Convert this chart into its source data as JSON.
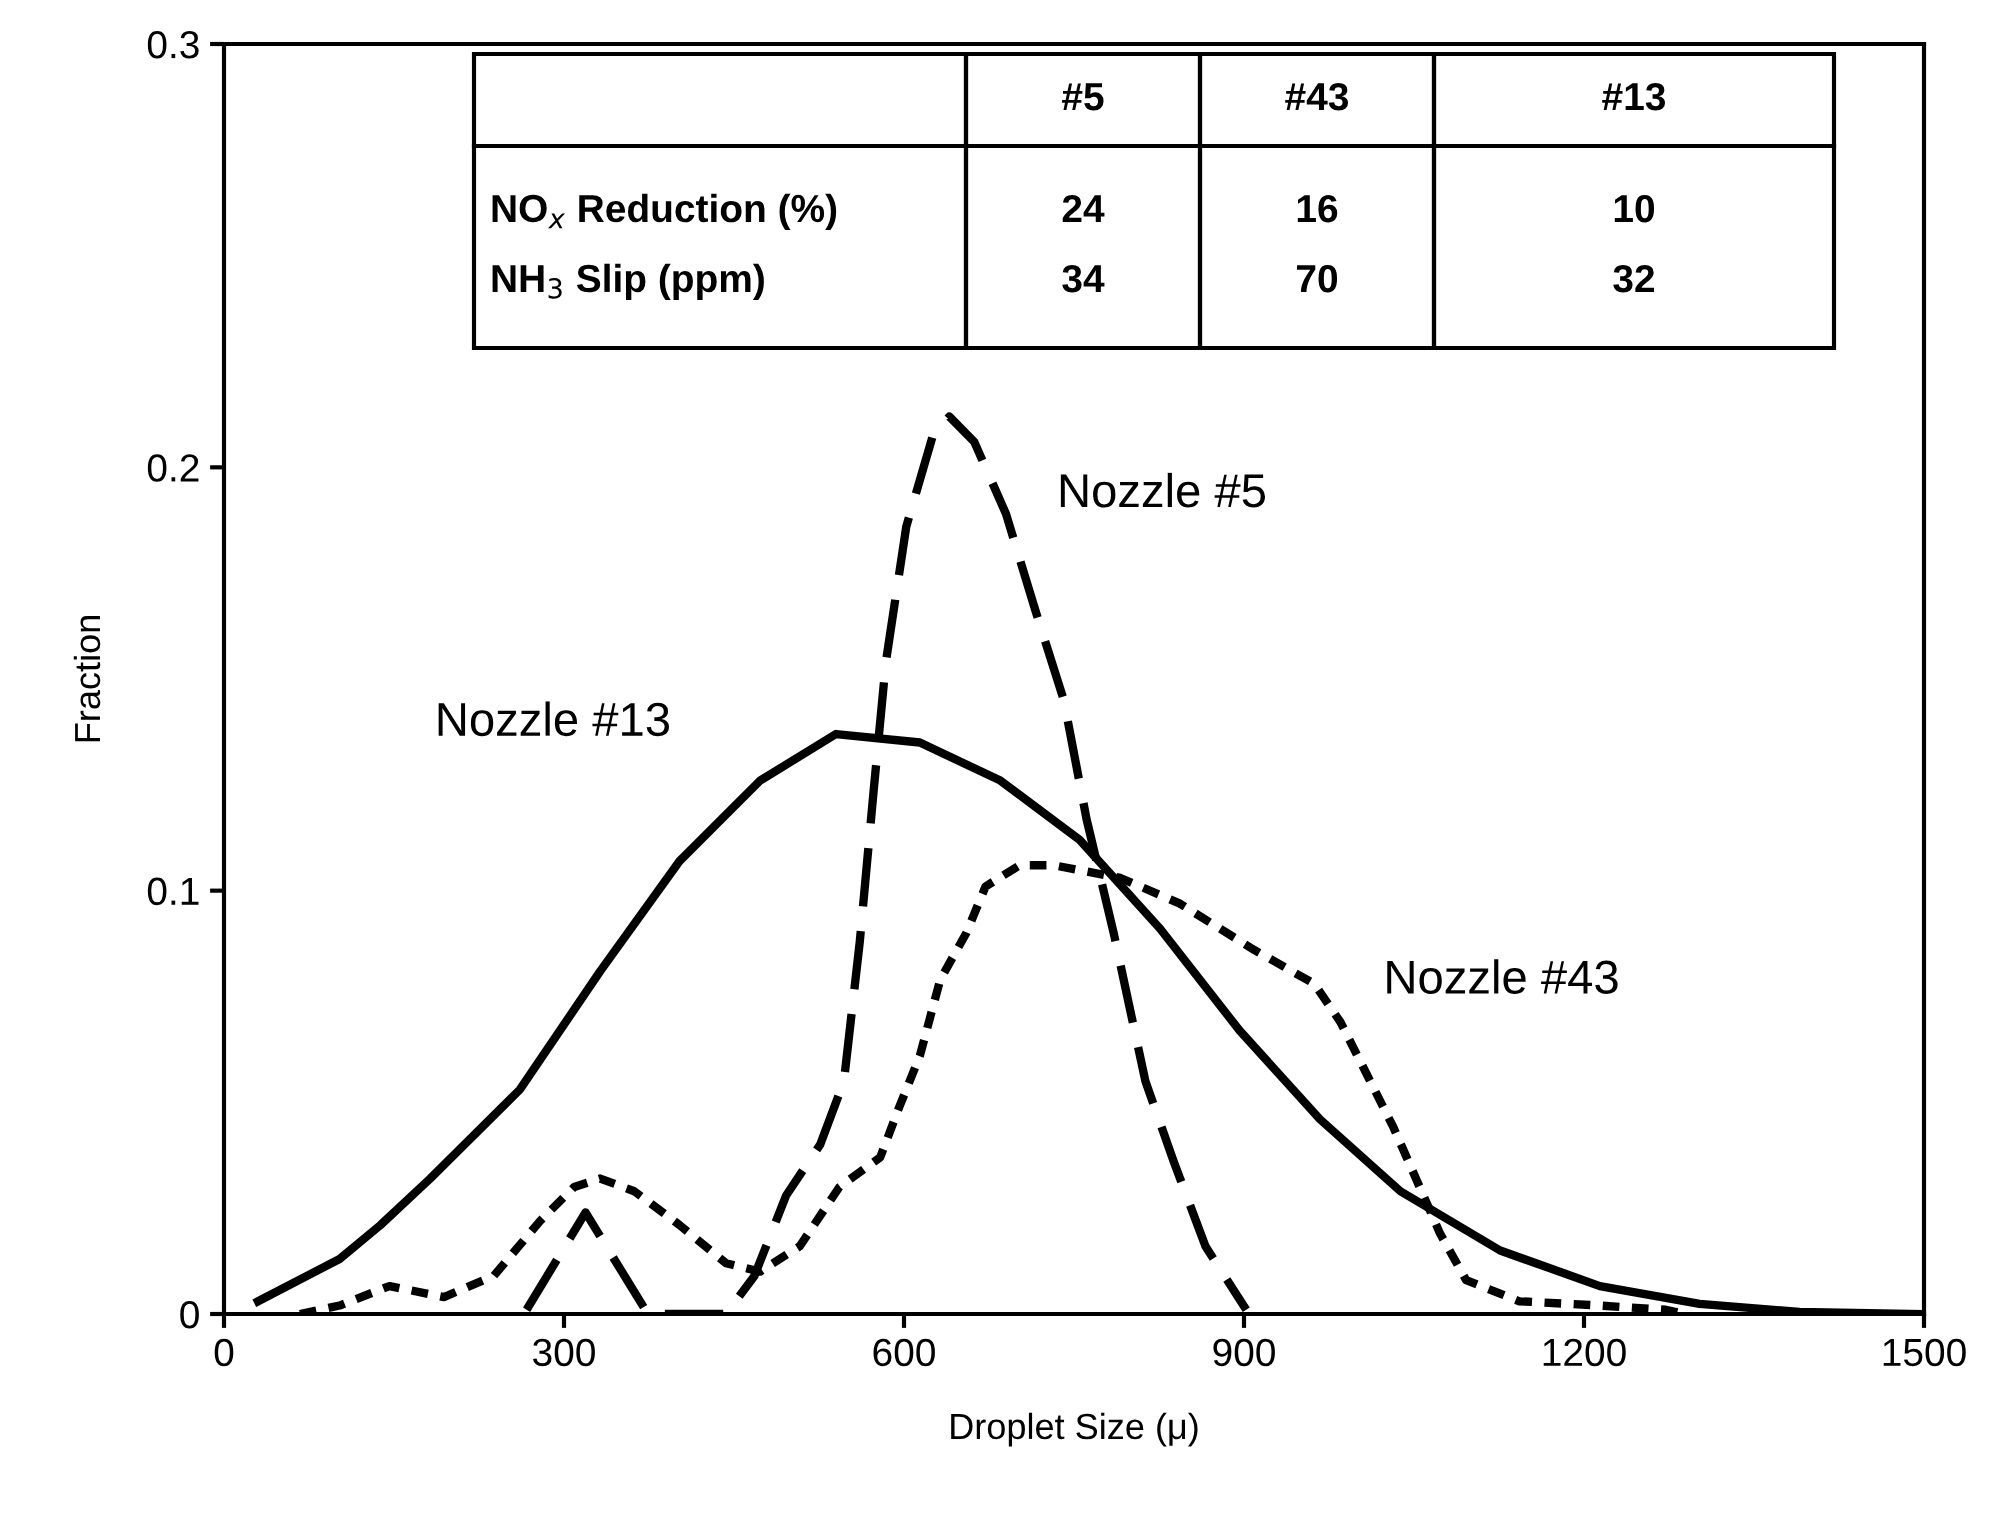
{
  "chart_data": {
    "type": "line",
    "xlabel": "Droplet Size (μ)",
    "ylabel": "Fraction",
    "xlim": [
      0,
      1500
    ],
    "xticks": [
      0,
      300,
      600,
      900,
      1200,
      1500
    ],
    "ylim": [
      0,
      0.3
    ],
    "yticks": [
      0,
      0.1,
      0.2,
      0.3
    ],
    "grid": false,
    "legend": false,
    "marker": "none",
    "annotations": [
      "#5",
      "#43",
      "#13",
      "NO$_{x}$ Reduction (%)",
      "24",
      "16",
      "10",
      "NH$_{3}$ Slip (ppm)",
      "34",
      "70",
      "32"
    ],
    "series": [
      {
        "name": "Nozzle #13",
        "color": "#000000",
        "line_style": "solid",
        "x": [
          30,
          102,
          138,
          182,
          261,
          332,
          402,
          473,
          540,
          614,
          685,
          755,
          826,
          896,
          967,
          1038,
          1126,
          1214,
          1302,
          1390,
          1496
        ],
        "values": [
          0.003,
          0.013,
          0.021,
          0.032,
          0.053,
          0.081,
          0.107,
          0.126,
          0.137,
          0.135,
          0.126,
          0.112,
          0.091,
          0.067,
          0.046,
          0.029,
          0.015,
          0.0066,
          0.0024,
          0.0005,
          0
        ]
      },
      {
        "name": "Nozzle #5",
        "color": "#000000",
        "line_style": "dashed",
        "x": [
          267,
          319,
          374,
          443,
          468,
          496,
          526,
          547,
          561,
          573,
          584,
          602,
          626,
          640,
          662,
          690,
          715,
          741,
          761,
          785,
          813,
          838,
          866,
          902
        ],
        "values": [
          0.001,
          0.024,
          0,
          0,
          0.009,
          0.028,
          0.04,
          0.055,
          0.088,
          0.123,
          0.154,
          0.186,
          0.208,
          0.212,
          0.206,
          0.189,
          0.167,
          0.145,
          0.117,
          0.09,
          0.055,
          0.036,
          0.016,
          0.001
        ]
      },
      {
        "name": "Nozzle #43",
        "color": "#000000",
        "line_style": "dotted",
        "x": [
          67,
          102,
          146,
          194,
          238,
          279,
          309,
          332,
          362,
          402,
          443,
          473,
          508,
          543,
          579,
          596,
          614,
          632,
          655,
          672,
          702,
          732,
          791,
          843,
          909,
          962,
          985,
          1002,
          1032,
          1055,
          1073,
          1096,
          1143,
          1214,
          1272,
          1290
        ],
        "values": [
          0,
          0.002,
          0.0066,
          0.004,
          0.009,
          0.022,
          0.03,
          0.032,
          0.029,
          0.021,
          0.012,
          0.01,
          0.016,
          0.03,
          0.037,
          0.049,
          0.061,
          0.079,
          0.09,
          0.101,
          0.106,
          0.106,
          0.103,
          0.097,
          0.086,
          0.078,
          0.069,
          0.06,
          0.044,
          0.03,
          0.019,
          0.008,
          0.003,
          0.002,
          0.001,
          0
        ]
      }
    ]
  }
}
